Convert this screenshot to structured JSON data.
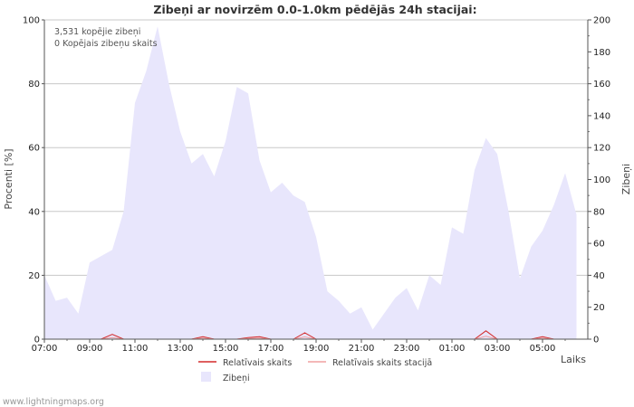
{
  "chart_data": {
    "type": "area",
    "title": "Zibeņi ar novirzēm 0.0-1.0km pēdējās 24h stacijai:",
    "xlabel": "Laiks",
    "ylabel_left": "Procenti  [%]",
    "ylabel_right": "Zibeņi",
    "ylim_left": [
      0,
      100
    ],
    "ylim_right": [
      0,
      200
    ],
    "yticks_left": [
      "0",
      "20",
      "40",
      "60",
      "80",
      "100"
    ],
    "yticks_right": [
      "0",
      "20",
      "40",
      "60",
      "80",
      "100",
      "120",
      "140",
      "160",
      "180",
      "200"
    ],
    "xticks": [
      "07:00",
      "09:00",
      "11:00",
      "13:00",
      "15:00",
      "17:00",
      "19:00",
      "21:00",
      "23:00",
      "01:00",
      "03:00",
      "05:00"
    ],
    "x_hours": [
      0,
      0.5,
      1,
      1.5,
      2,
      2.5,
      3,
      3.5,
      4,
      4.5,
      5,
      5.5,
      6,
      6.5,
      7,
      7.5,
      8,
      8.5,
      9,
      9.5,
      10,
      10.5,
      11,
      11.5,
      12,
      12.5,
      13,
      13.5,
      14,
      14.5,
      15,
      15.5,
      16,
      16.5,
      17,
      17.5,
      18,
      18.5,
      19,
      19.5,
      20,
      20.5,
      21,
      21.5,
      22,
      22.5,
      23,
      23.5
    ],
    "grid": true,
    "legend_position": "bottom",
    "annotations": [
      "3,531 kopējie zibeņi",
      "0 Kopējais zibeņu skaits"
    ],
    "series": [
      {
        "name": "Zibeņi",
        "axis": "right",
        "kind": "area",
        "color": "#e8e6fc",
        "values": [
          40,
          24,
          26,
          16,
          48,
          52,
          56,
          80,
          148,
          168,
          196,
          160,
          130,
          110,
          116,
          102,
          124,
          158,
          154,
          112,
          92,
          98,
          90,
          86,
          64,
          30,
          24,
          16,
          20,
          6,
          16,
          26,
          32,
          18,
          40,
          34,
          70,
          66,
          106,
          126,
          116,
          80,
          38,
          58,
          68,
          84,
          104,
          78
        ]
      },
      {
        "name": "Relatīvais skaits",
        "axis": "left",
        "kind": "line",
        "color": "#d42a2a",
        "values": [
          0,
          0,
          0,
          0,
          0,
          0,
          1.5,
          0,
          0,
          0,
          0,
          0,
          0,
          0,
          0.8,
          0,
          0,
          0,
          0.5,
          0.8,
          0,
          0,
          0,
          2,
          0,
          0,
          0,
          0,
          0,
          0,
          0,
          0,
          0,
          0,
          0,
          0,
          0,
          0,
          0,
          2.6,
          0,
          0,
          0,
          0,
          0.8,
          0,
          0,
          0
        ]
      },
      {
        "name": "Relatīvais skaits stacijā",
        "axis": "left",
        "kind": "line",
        "color": "#f0a0a0",
        "values": [
          0,
          0,
          0,
          0,
          0,
          0,
          0.5,
          0,
          0,
          0,
          0,
          0,
          0,
          0,
          0.3,
          0,
          0,
          0,
          0.2,
          0.3,
          0,
          0,
          0,
          0.7,
          0,
          0,
          0,
          0,
          0,
          0,
          0,
          0,
          0,
          0,
          0,
          0,
          0,
          0,
          0,
          0.9,
          0,
          0,
          0,
          0,
          0.3,
          0,
          0,
          0
        ]
      }
    ]
  },
  "legend": [
    {
      "label": "Relatīvais skaits",
      "color": "#d42a2a",
      "kind": "line"
    },
    {
      "label": "Relatīvais skaits stacijā",
      "color": "#f0a0a0",
      "kind": "line"
    },
    {
      "label": "Zibeņi",
      "color": "#e8e6fc",
      "kind": "box"
    }
  ],
  "footer": "www.lightningmaps.org"
}
